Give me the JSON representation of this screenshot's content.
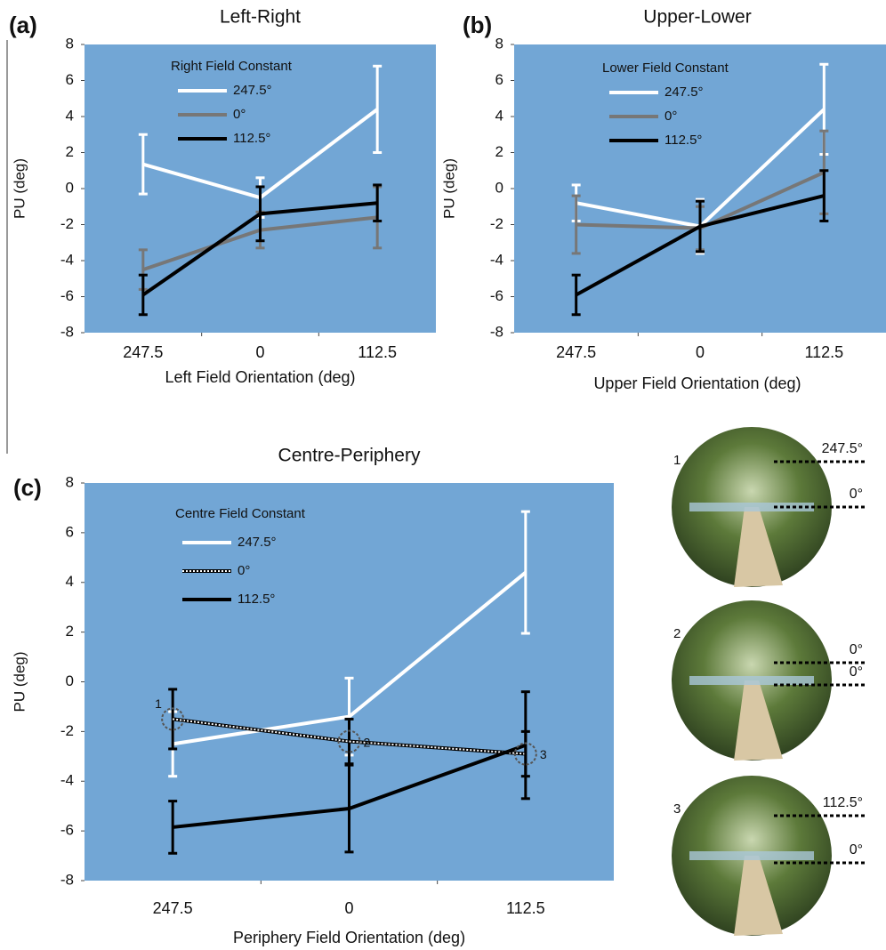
{
  "chart_data": [
    {
      "type": "line",
      "panel_label": "(a)",
      "title": "Left-Right",
      "xlabel": "Left Field Orientation (deg)",
      "ylabel": "PU (deg)",
      "legend_title": "Right Field Constant",
      "categories": [
        "247.5",
        "0",
        "112.5"
      ],
      "ylim": [
        -8,
        8
      ],
      "yticks": [
        -8,
        -6,
        -4,
        -2,
        0,
        2,
        4,
        6,
        8
      ],
      "series": [
        {
          "name": "247.5°",
          "color": "#ffffff",
          "values": [
            1.35,
            -0.5,
            4.4
          ],
          "errors": [
            1.65,
            1.1,
            2.4
          ]
        },
        {
          "name": "0°",
          "color": "#777777",
          "values": [
            -4.5,
            -2.3,
            -1.6
          ],
          "errors": [
            1.1,
            1.0,
            1.7
          ]
        },
        {
          "name": "112.5°",
          "color": "#000000",
          "values": [
            -5.9,
            -1.4,
            -0.8
          ],
          "errors": [
            1.1,
            1.5,
            1.0
          ]
        }
      ]
    },
    {
      "type": "line",
      "panel_label": "(b)",
      "title": "Upper-Lower",
      "xlabel": "Upper Field Orientation (deg)",
      "ylabel": "PU (deg)",
      "legend_title": "Lower Field Constant",
      "categories": [
        "247.5",
        "0",
        "112.5"
      ],
      "ylim": [
        -8,
        8
      ],
      "yticks": [
        -8,
        -6,
        -4,
        -2,
        0,
        2,
        4,
        6,
        8
      ],
      "series": [
        {
          "name": "247.5°",
          "color": "#ffffff",
          "values": [
            -0.8,
            -2.1,
            4.4
          ],
          "errors": [
            1.0,
            1.5,
            2.5
          ]
        },
        {
          "name": "0°",
          "color": "#777777",
          "values": [
            -2.0,
            -2.2,
            0.9
          ],
          "errors": [
            1.6,
            1.2,
            2.3
          ]
        },
        {
          "name": "112.5°",
          "color": "#000000",
          "values": [
            -5.9,
            -2.1,
            -0.4
          ],
          "errors": [
            1.1,
            1.4,
            1.4
          ]
        }
      ]
    },
    {
      "type": "line",
      "panel_label": "(c)",
      "title": "Centre-Periphery",
      "xlabel": "Periphery Field Orientation (deg)",
      "ylabel": "PU (deg)",
      "legend_title": "Centre Field Constant",
      "categories": [
        "247.5",
        "0",
        "112.5"
      ],
      "ylim": [
        -8,
        8
      ],
      "yticks": [
        -8,
        -6,
        -4,
        -2,
        0,
        2,
        4,
        6,
        8
      ],
      "annotations": [
        "1",
        "2",
        "3"
      ],
      "series": [
        {
          "name": "247.5°",
          "color": "#ffffff",
          "values": [
            -2.5,
            -1.4,
            4.4
          ],
          "errors": [
            1.3,
            1.55,
            2.45
          ]
        },
        {
          "name": "0°",
          "color": "#000000",
          "dash": "dotted",
          "values": [
            -1.5,
            -2.4,
            -2.9
          ],
          "errors": [
            1.2,
            0.9,
            0.9
          ]
        },
        {
          "name": "112.5°",
          "color": "#000000",
          "values": [
            -5.85,
            -5.1,
            -2.55
          ],
          "errors": [
            1.05,
            1.75,
            2.15
          ]
        }
      ]
    }
  ],
  "insets": [
    {
      "label": "1",
      "lines": [
        "247.5°",
        "0°"
      ]
    },
    {
      "label": "2",
      "lines": [
        "0°",
        "0°"
      ]
    },
    {
      "label": "3",
      "lines": [
        "112.5°",
        "0°"
      ]
    }
  ]
}
